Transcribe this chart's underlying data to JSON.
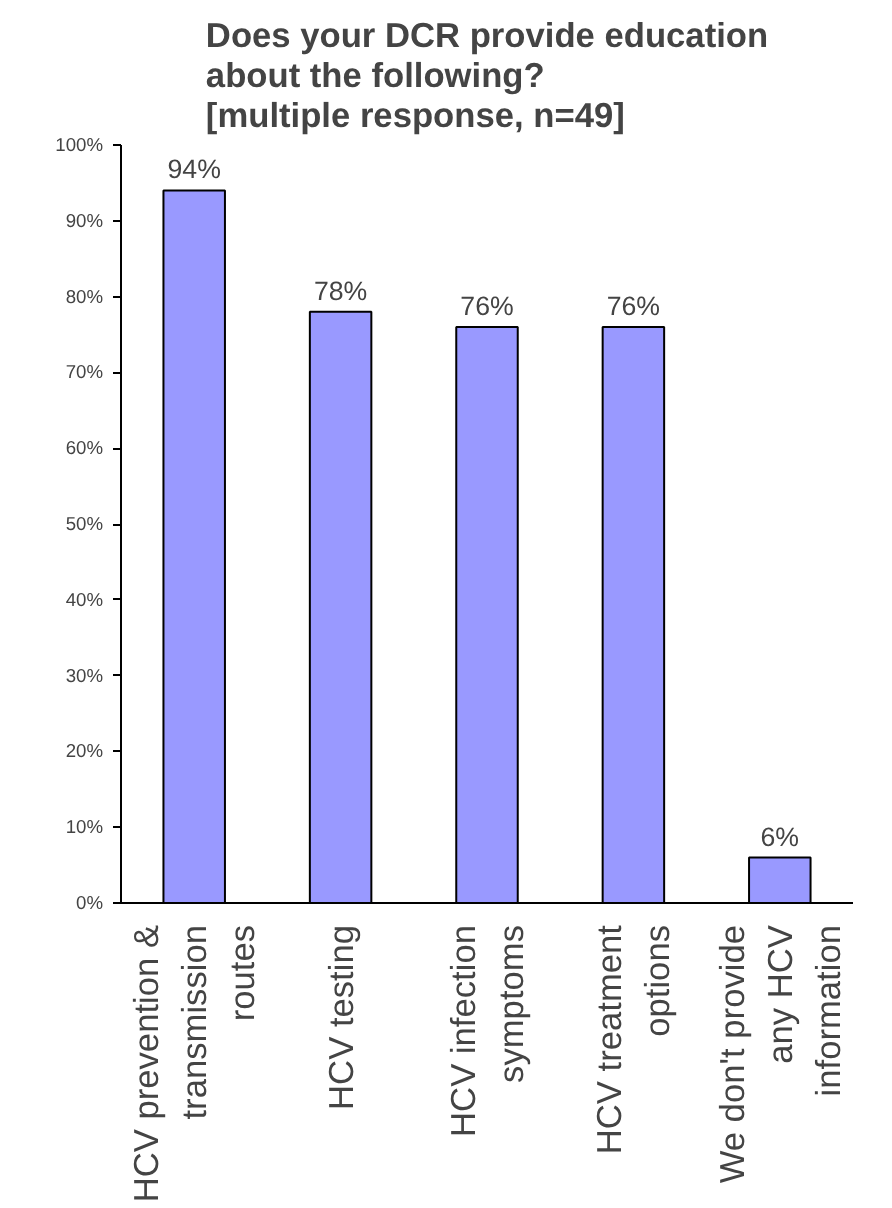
{
  "chart_data": {
    "type": "bar",
    "title": "Does your DCR provide education\nabout the following?\n[multiple response, n=49]",
    "categories": [
      "HCV prevention &\ntransmission\nroutes",
      "HCV testing",
      "HCV infection\nsymptoms",
      "HCV treatment\noptions",
      "We don't provide\nany HCV\ninformation"
    ],
    "values": [
      94,
      78,
      76,
      76,
      6
    ],
    "color": "#9999ff",
    "value_labels": [
      "94%",
      "78%",
      "76%",
      "76%",
      "6%"
    ],
    "ylim": [
      0,
      100
    ],
    "yticks": [
      {
        "value": 0,
        "label": "0%"
      },
      {
        "value": 10,
        "label": "10%"
      },
      {
        "value": 20,
        "label": "20%"
      },
      {
        "value": 30,
        "label": "30%"
      },
      {
        "value": 40,
        "label": "40%"
      },
      {
        "value": 50,
        "label": "50%"
      },
      {
        "value": 60,
        "label": "60%"
      },
      {
        "value": 70,
        "label": "70%"
      },
      {
        "value": 80,
        "label": "80%"
      },
      {
        "value": 90,
        "label": "90%"
      },
      {
        "value": 100,
        "label": "100%"
      }
    ],
    "grid": false
  }
}
